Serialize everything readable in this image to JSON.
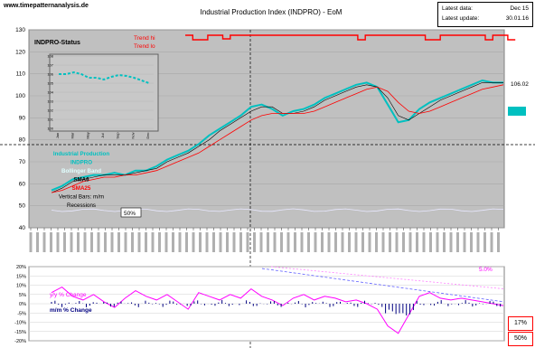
{
  "site": "www.timepatternanalysis.de",
  "title": "Industrial Production Index (INDPRO) - EoM",
  "info": {
    "latest_data_label": "Latest data:",
    "latest_data_value": "Dec 15",
    "latest_update_label": "Latest update:",
    "latest_update_value": "30.01.16"
  },
  "badges": {
    "value_right": "106.02",
    "pct1": "17%",
    "pct2": "50%",
    "inner_50": "50%",
    "yoy_label_right": "5.0%"
  },
  "colors": {
    "plot_bg": "#c0c0c0",
    "main_line": "#00c0c0",
    "sma6": "#000000",
    "sma25": "#ff0000",
    "trend_hi": "#ff0000",
    "yoy": "#ff00ff",
    "mm": "#000080"
  },
  "chart_data": [
    {
      "type": "line",
      "title": "Industrial Production Index (INDPRO) - EoM",
      "ylim": [
        40,
        130
      ],
      "yticks": [
        40,
        50,
        60,
        70,
        80,
        90,
        100,
        110,
        120,
        130
      ],
      "grid": true,
      "status_label": "INDPRO-Status",
      "trend_labels": [
        "Trend hi",
        "Trend lo"
      ],
      "legend": [
        "Industrial Production",
        "INDPRO",
        "Bollinger Band",
        "SMA6",
        "SMA25",
        "Vertical Bars: m/m",
        "Recessions"
      ],
      "series": [
        {
          "name": "INDPRO",
          "values": [
            57,
            59,
            62,
            63,
            64,
            64,
            65,
            64,
            66,
            66,
            68,
            71,
            73,
            75,
            78,
            82,
            85,
            88,
            91,
            95,
            96,
            94,
            91,
            93,
            94,
            96,
            99,
            101,
            103,
            105,
            106,
            104,
            96,
            88,
            89,
            94,
            97,
            99,
            101,
            103,
            105,
            107,
            106,
            106
          ]
        },
        {
          "name": "SMA6",
          "values": [
            56,
            58,
            61,
            62,
            63,
            64,
            64,
            64,
            65,
            66,
            67,
            70,
            72,
            74,
            77,
            80,
            84,
            87,
            90,
            93,
            95,
            95,
            92,
            92,
            93,
            95,
            98,
            100,
            102,
            104,
            105,
            104,
            99,
            91,
            89,
            92,
            95,
            98,
            100,
            102,
            104,
            106,
            106,
            106
          ]
        },
        {
          "name": "SMA25",
          "values": [
            56,
            57,
            59,
            61,
            62,
            63,
            63,
            64,
            64,
            65,
            66,
            68,
            70,
            72,
            74,
            77,
            80,
            83,
            86,
            89,
            91,
            92,
            92,
            92,
            92,
            93,
            95,
            97,
            99,
            101,
            103,
            104,
            102,
            97,
            93,
            92,
            93,
            95,
            97,
            99,
            101,
            103,
            104,
            105
          ]
        }
      ],
      "inset": {
        "yticks": [
          100,
          101,
          102,
          103,
          104,
          105,
          106,
          107,
          108
        ],
        "ylim": [
          100,
          108
        ],
        "values": [
          106,
          106,
          106.2,
          106,
          105.6,
          105.6,
          105.4,
          105.7,
          105.9,
          105.8,
          105.6,
          105.3,
          105
        ],
        "xticks": [
          "Jan",
          "Mar",
          "May",
          "Jul",
          "Sep",
          "Nov",
          "Dec"
        ]
      }
    },
    {
      "type": "line",
      "ylim": [
        -20,
        20
      ],
      "yticks": [
        -20,
        -15,
        -10,
        -5,
        0,
        5,
        10,
        15,
        20
      ],
      "series_labels": [
        "y/y % Change",
        "m/m % Change"
      ],
      "series": [
        {
          "name": "y/y % Change",
          "values": [
            6,
            9,
            4,
            2,
            5,
            1,
            -2,
            3,
            7,
            4,
            2,
            5,
            1,
            -3,
            6,
            4,
            2,
            5,
            3,
            8,
            4,
            2,
            -1,
            3,
            5,
            2,
            4,
            3,
            1,
            2,
            0,
            -3,
            -12,
            -16,
            -6,
            4,
            6,
            3,
            2,
            3,
            2,
            1,
            0,
            -1
          ]
        }
      ]
    }
  ]
}
